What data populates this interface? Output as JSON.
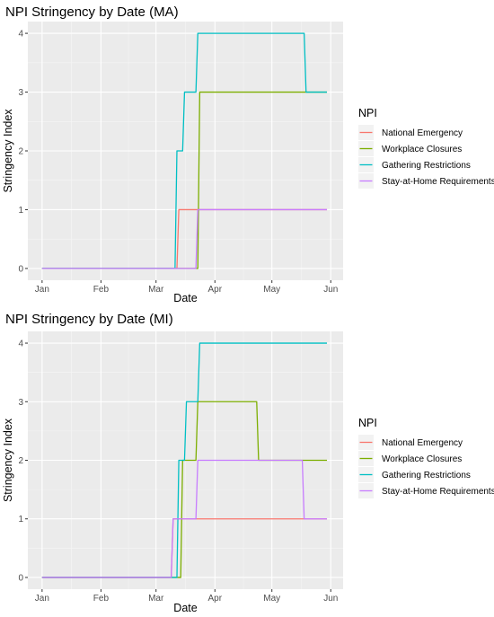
{
  "chart_data": [
    {
      "type": "line",
      "title": "NPI Stringency by Date (MA)",
      "xlabel": "Date",
      "ylabel": "Stringency Index",
      "x_ticks": [
        "Jan",
        "Feb",
        "Mar",
        "Apr",
        "May",
        "Jun"
      ],
      "y_ticks": [
        "0",
        "1",
        "2",
        "3",
        "4"
      ],
      "ylim": [
        0,
        4
      ],
      "grid": true,
      "legend_title": "NPI",
      "legend_position": "right",
      "series": [
        {
          "name": "National Emergency",
          "color": "#F8766D",
          "x": [
            "2020-01-01",
            "2020-03-12",
            "2020-03-13",
            "2020-05-30"
          ],
          "y": [
            0,
            0,
            1,
            1
          ]
        },
        {
          "name": "Workplace Closures",
          "color": "#7CAE00",
          "x": [
            "2020-01-01",
            "2020-03-23",
            "2020-03-24",
            "2020-05-30"
          ],
          "y": [
            0,
            0,
            3,
            3
          ]
        },
        {
          "name": "Gathering Restrictions",
          "color": "#00BFC4",
          "x": [
            "2020-01-01",
            "2020-03-11",
            "2020-03-12",
            "2020-03-15",
            "2020-03-16",
            "2020-03-22",
            "2020-03-23",
            "2020-05-18",
            "2020-05-19",
            "2020-05-30"
          ],
          "y": [
            0,
            0,
            2,
            2,
            3,
            3,
            4,
            4,
            3,
            3
          ]
        },
        {
          "name": "Stay-at-Home Requirements",
          "color": "#C77CFF",
          "x": [
            "2020-01-01",
            "2020-03-22",
            "2020-03-23",
            "2020-05-30"
          ],
          "y": [
            0,
            0,
            1,
            1
          ]
        }
      ]
    },
    {
      "type": "line",
      "title": "NPI Stringency by Date (MI)",
      "xlabel": "Date",
      "ylabel": "Stringency Index",
      "x_ticks": [
        "Jan",
        "Feb",
        "Mar",
        "Apr",
        "May",
        "Jun"
      ],
      "y_ticks": [
        "0",
        "1",
        "2",
        "3",
        "4"
      ],
      "ylim": [
        0,
        4
      ],
      "grid": true,
      "legend_title": "NPI",
      "legend_position": "right",
      "series": [
        {
          "name": "National Emergency",
          "color": "#F8766D",
          "x": [
            "2020-01-01",
            "2020-03-09",
            "2020-03-10",
            "2020-05-30"
          ],
          "y": [
            0,
            0,
            1,
            1
          ]
        },
        {
          "name": "Workplace Closures",
          "color": "#7CAE00",
          "x": [
            "2020-01-01",
            "2020-03-14",
            "2020-03-15",
            "2020-03-22",
            "2020-03-23",
            "2020-04-23",
            "2020-04-24",
            "2020-05-30"
          ],
          "y": [
            0,
            0,
            2,
            2,
            3,
            3,
            2,
            2
          ]
        },
        {
          "name": "Gathering Restrictions",
          "color": "#00BFC4",
          "x": [
            "2020-01-01",
            "2020-03-12",
            "2020-03-13",
            "2020-03-16",
            "2020-03-17",
            "2020-03-23",
            "2020-03-24",
            "2020-05-30"
          ],
          "y": [
            0,
            0,
            2,
            2,
            3,
            3,
            4,
            4
          ]
        },
        {
          "name": "Stay-at-Home Requirements",
          "color": "#C77CFF",
          "x": [
            "2020-01-01",
            "2020-03-09",
            "2020-03-10",
            "2020-03-22",
            "2020-03-23",
            "2020-05-17",
            "2020-05-18",
            "2020-05-30"
          ],
          "y": [
            0,
            0,
            1,
            1,
            2,
            2,
            1,
            1
          ]
        }
      ]
    }
  ]
}
